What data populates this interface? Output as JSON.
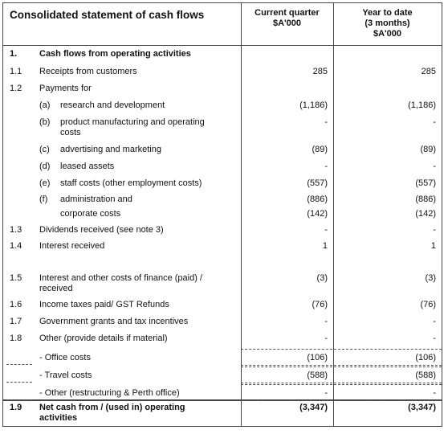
{
  "header": {
    "title": "Consolidated statement of cash flows",
    "current": "Current quarter\n$A'000",
    "ytd": "Year to date\n(3 months)\n$A'000"
  },
  "table": {
    "rows": [
      {
        "num": "1.",
        "label": "Cash flows from operating activities"
      },
      {
        "num": "1.1",
        "label": "Receipts from customers",
        "current": "285",
        "ytd": "285"
      },
      {
        "num": "1.2",
        "label": "Payments for"
      },
      {
        "sub": "(a)",
        "label": "research and development",
        "current": "(1,186)",
        "ytd": "(1,186)"
      },
      {
        "sub": "(b)",
        "label": "product manufacturing and operating costs",
        "current": "-",
        "ytd": "-"
      },
      {
        "sub": "(c)",
        "label": "advertising and marketing",
        "current": "(89)",
        "ytd": "(89)"
      },
      {
        "sub": "(d)",
        "label": "leased assets",
        "current": "-",
        "ytd": "-"
      },
      {
        "sub": "(e)",
        "label": "staff costs (other employment costs)",
        "current": "(557)",
        "ytd": "(557)"
      },
      {
        "sub": "(f)",
        "label": "administration and",
        "current": "(886)",
        "ytd": "(886)"
      },
      {
        "label": "corporate costs",
        "current": "(142)",
        "ytd": "(142)"
      },
      {
        "num": "1.3",
        "label": "Dividends received (see note 3)",
        "current": "-",
        "ytd": "-"
      },
      {
        "num": "1.4",
        "label": "Interest received",
        "current": "1",
        "ytd": "1"
      },
      {
        "num": "1.5",
        "label": "Interest and other costs of finance (paid) / received",
        "current": "(3)",
        "ytd": "(3)"
      },
      {
        "num": "1.6",
        "label": "Income taxes paid/ GST Refunds",
        "current": "(76)",
        "ytd": "(76)"
      },
      {
        "num": "1.7",
        "label": "Government grants and tax incentives",
        "current": "-",
        "ytd": "-"
      },
      {
        "num": "1.8",
        "label": "Other (provide details if material)",
        "current": "-",
        "ytd": "-"
      },
      {
        "label": "- Office costs",
        "current": "(106)",
        "ytd": "(106)"
      },
      {
        "label": "- Travel costs",
        "current": "(588)",
        "ytd": "(588)"
      },
      {
        "label": "- Other (restructuring & Perth office)",
        "current": "-",
        "ytd": "-"
      },
      {
        "num": "1.9",
        "label": "Net cash from / (used in) operating activities",
        "current": "(3,347)",
        "ytd": "(3,347)"
      }
    ]
  }
}
